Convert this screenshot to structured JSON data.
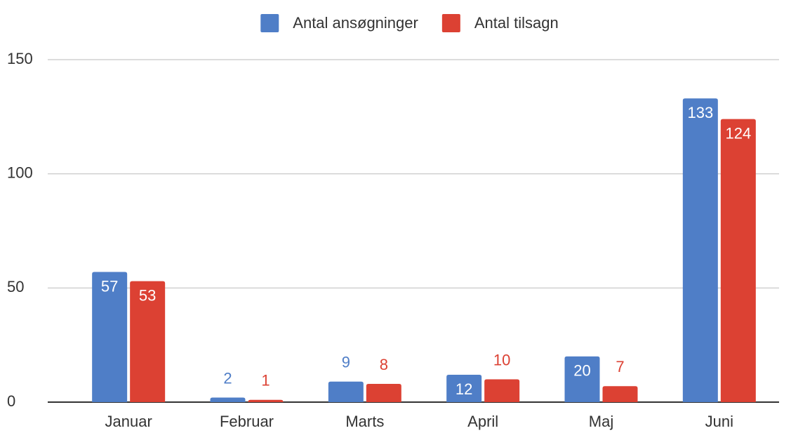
{
  "chart_data": {
    "type": "bar",
    "categories": [
      "Januar",
      "Februar",
      "Marts",
      "April",
      "Maj",
      "Juni"
    ],
    "series": [
      {
        "name": "Antal ansøgninger",
        "color": "#4f7ec7",
        "values": [
          57,
          2,
          9,
          12,
          20,
          133
        ]
      },
      {
        "name": "Antal tilsagn",
        "color": "#dc4133",
        "values": [
          53,
          1,
          8,
          10,
          7,
          124
        ]
      }
    ],
    "ylim": [
      0,
      150
    ],
    "yticks": [
      0,
      50,
      100,
      150
    ],
    "grid": true,
    "legend": "top",
    "data_labels": true
  }
}
